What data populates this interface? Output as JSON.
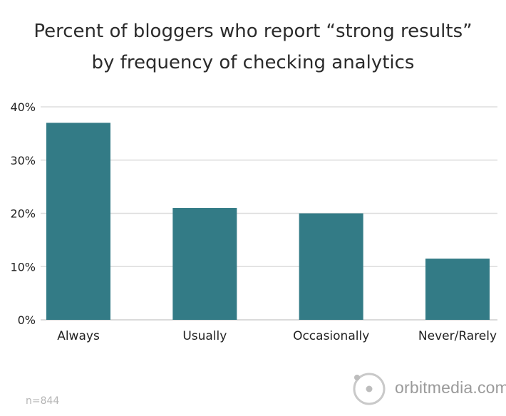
{
  "chart_data": {
    "type": "bar",
    "title": "Percent of bloggers who report “strong results”",
    "title_line2": "by frequency of checking analytics",
    "categories": [
      "Always",
      "Usually",
      "Occasionally",
      "Never/Rarely"
    ],
    "values": [
      37,
      21,
      20,
      11.5
    ],
    "ylim": [
      0,
      40
    ],
    "yticks": [
      "0%",
      "10%",
      "20%",
      "30%",
      "40%"
    ],
    "ytick_values": [
      0,
      10,
      20,
      30,
      40
    ],
    "grid": true,
    "bar_color": "#337b86"
  },
  "footnote": "n=844",
  "logo": {
    "text": "orbitmedia.com",
    "icon": "orbit-icon"
  }
}
